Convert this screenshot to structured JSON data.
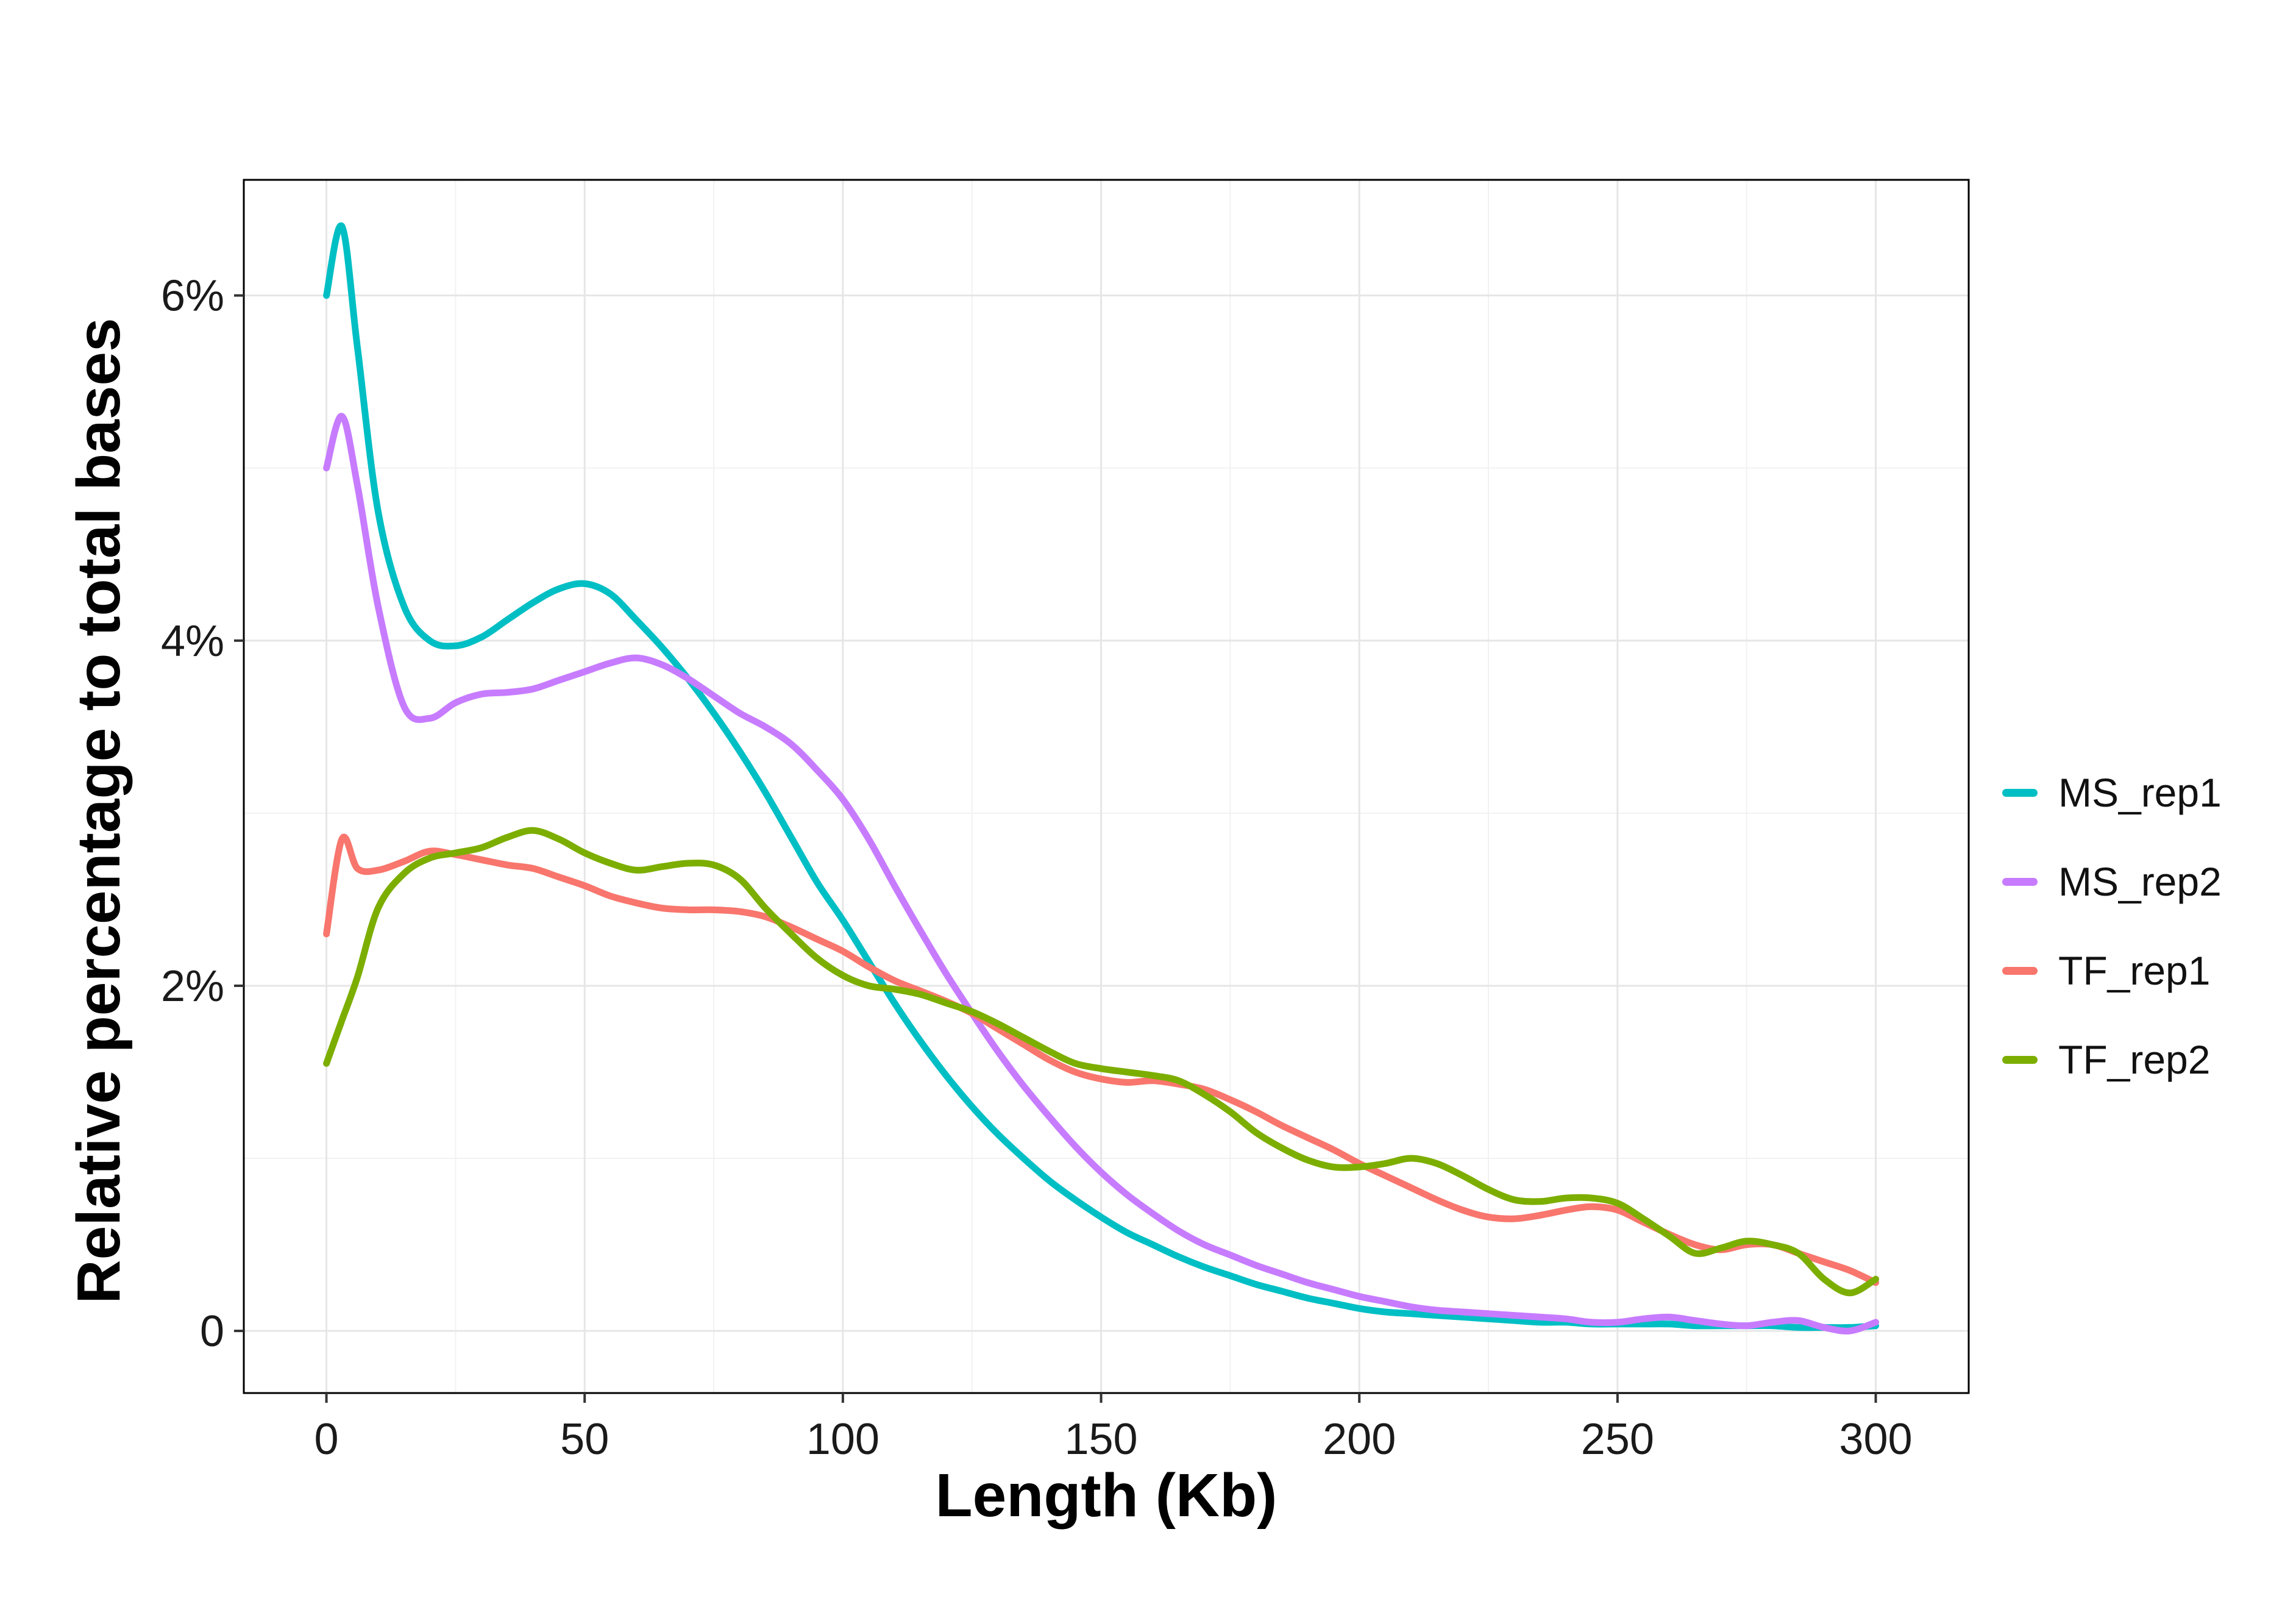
{
  "figure": {
    "background": "#ffffff"
  },
  "styles": {
    "panel_border": "#000000",
    "grid_major": "#e6e6e6",
    "grid_minor": "#f2f2f2",
    "tick_mark_color": "#333333",
    "tick_label_color": "#1a1a1a",
    "axis_title_color": "#000000",
    "line_width": 11
  },
  "chart_data": {
    "type": "line",
    "title": "",
    "xlabel": "Length (Kb)",
    "ylabel": "Relative percentage to total bases",
    "xlim": [
      -16,
      318
    ],
    "ylim": [
      -0.36,
      6.67
    ],
    "x_ticks": [
      0,
      50,
      100,
      150,
      200,
      250,
      300
    ],
    "x_minor_ticks": [
      25,
      75,
      125,
      175,
      225,
      275
    ],
    "y_ticks": [
      0,
      2,
      4,
      6
    ],
    "y_tick_labels": [
      "0",
      "2%",
      "4%",
      "6%"
    ],
    "y_minor_ticks": [
      1,
      3,
      5
    ],
    "grid": true,
    "legend_position": "right",
    "x_unit": "Kb",
    "y_unit": "percent of total bases",
    "x": [
      0,
      3,
      6,
      10,
      15,
      20,
      25,
      30,
      35,
      40,
      45,
      50,
      55,
      60,
      65,
      70,
      75,
      80,
      85,
      90,
      95,
      100,
      105,
      110,
      115,
      120,
      125,
      130,
      135,
      140,
      145,
      150,
      155,
      160,
      165,
      170,
      175,
      180,
      185,
      190,
      195,
      200,
      205,
      210,
      215,
      220,
      225,
      230,
      235,
      240,
      245,
      250,
      255,
      260,
      265,
      270,
      275,
      280,
      285,
      290,
      295,
      300
    ],
    "series": [
      {
        "name": "MS_rep1",
        "color": "#00BFC4",
        "values": [
          6.0,
          6.4,
          5.7,
          4.75,
          4.2,
          4.0,
          3.97,
          4.02,
          4.12,
          4.22,
          4.3,
          4.33,
          4.27,
          4.12,
          3.96,
          3.78,
          3.58,
          3.36,
          3.12,
          2.86,
          2.6,
          2.38,
          2.14,
          1.9,
          1.68,
          1.48,
          1.3,
          1.14,
          1.0,
          0.87,
          0.76,
          0.66,
          0.57,
          0.5,
          0.43,
          0.37,
          0.32,
          0.27,
          0.23,
          0.19,
          0.16,
          0.13,
          0.11,
          0.1,
          0.09,
          0.08,
          0.07,
          0.06,
          0.05,
          0.05,
          0.04,
          0.04,
          0.04,
          0.04,
          0.03,
          0.03,
          0.03,
          0.03,
          0.02,
          0.02,
          0.02,
          0.03
        ]
      },
      {
        "name": "MS_rep2",
        "color": "#C77CFF",
        "values": [
          5.0,
          5.3,
          4.9,
          4.2,
          3.62,
          3.55,
          3.64,
          3.69,
          3.7,
          3.72,
          3.77,
          3.82,
          3.87,
          3.9,
          3.86,
          3.78,
          3.68,
          3.58,
          3.5,
          3.4,
          3.25,
          3.08,
          2.85,
          2.58,
          2.32,
          2.07,
          1.84,
          1.62,
          1.42,
          1.24,
          1.07,
          0.92,
          0.79,
          0.68,
          0.58,
          0.5,
          0.44,
          0.38,
          0.33,
          0.28,
          0.24,
          0.2,
          0.17,
          0.14,
          0.12,
          0.11,
          0.1,
          0.09,
          0.08,
          0.07,
          0.05,
          0.05,
          0.07,
          0.08,
          0.06,
          0.04,
          0.03,
          0.05,
          0.06,
          0.02,
          0.0,
          0.05
        ]
      },
      {
        "name": "TF_rep1",
        "color": "#F8766D",
        "values": [
          2.3,
          2.85,
          2.68,
          2.67,
          2.72,
          2.78,
          2.76,
          2.73,
          2.7,
          2.68,
          2.63,
          2.58,
          2.52,
          2.48,
          2.45,
          2.44,
          2.44,
          2.43,
          2.4,
          2.34,
          2.27,
          2.2,
          2.11,
          2.03,
          1.97,
          1.91,
          1.84,
          1.75,
          1.66,
          1.57,
          1.5,
          1.46,
          1.44,
          1.45,
          1.43,
          1.4,
          1.34,
          1.27,
          1.19,
          1.12,
          1.05,
          0.97,
          0.9,
          0.83,
          0.76,
          0.7,
          0.66,
          0.65,
          0.67,
          0.7,
          0.72,
          0.7,
          0.63,
          0.56,
          0.5,
          0.47,
          0.5,
          0.5,
          0.45,
          0.4,
          0.35,
          0.28
        ]
      },
      {
        "name": "TF_rep2",
        "color": "#7CAE00",
        "values": [
          1.55,
          1.8,
          2.05,
          2.45,
          2.65,
          2.74,
          2.77,
          2.8,
          2.86,
          2.9,
          2.85,
          2.77,
          2.71,
          2.67,
          2.69,
          2.71,
          2.7,
          2.62,
          2.45,
          2.3,
          2.16,
          2.06,
          2.0,
          1.98,
          1.95,
          1.9,
          1.85,
          1.78,
          1.7,
          1.62,
          1.55,
          1.52,
          1.5,
          1.48,
          1.45,
          1.37,
          1.27,
          1.15,
          1.06,
          0.99,
          0.95,
          0.95,
          0.97,
          1.0,
          0.97,
          0.9,
          0.82,
          0.76,
          0.75,
          0.77,
          0.77,
          0.74,
          0.65,
          0.55,
          0.45,
          0.48,
          0.52,
          0.5,
          0.45,
          0.3,
          0.22,
          0.3
        ]
      }
    ],
    "legend_labels": [
      "MS_rep1",
      "MS_rep2",
      "TF_rep1",
      "TF_rep2"
    ]
  }
}
